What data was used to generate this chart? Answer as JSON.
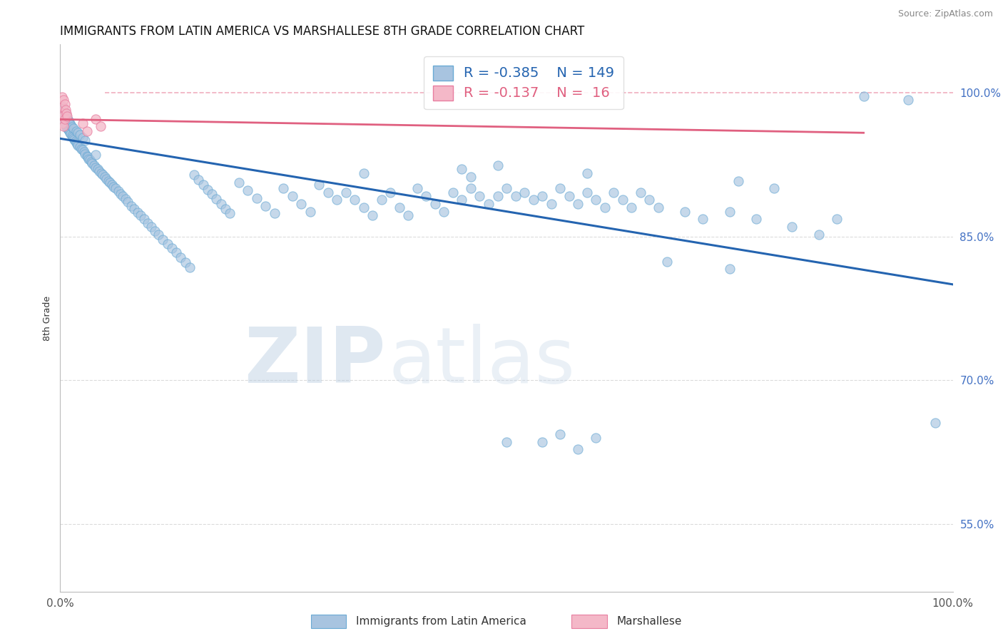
{
  "title": "IMMIGRANTS FROM LATIN AMERICA VS MARSHALLESE 8TH GRADE CORRELATION CHART",
  "source": "Source: ZipAtlas.com",
  "ylabel": "8th Grade",
  "xlim": [
    0.0,
    1.0
  ],
  "ylim": [
    0.48,
    1.05
  ],
  "yticks": [
    0.55,
    0.7,
    0.85,
    1.0
  ],
  "ytick_labels": [
    "55.0%",
    "70.0%",
    "85.0%",
    "100.0%"
  ],
  "blue_R": -0.385,
  "blue_N": 149,
  "pink_R": -0.137,
  "pink_N": 16,
  "blue_color": "#a8c4e0",
  "blue_edge": "#6aaad4",
  "pink_color": "#f4b8c8",
  "pink_edge": "#e87ea0",
  "blue_line_color": "#2464b0",
  "pink_line_color": "#e06080",
  "legend_blue_label": "Immigrants from Latin America",
  "legend_pink_label": "Marshallese",
  "watermark_zip": "ZIP",
  "watermark_atlas": "atlas",
  "background_color": "#ffffff",
  "grid_color": "#cccccc",
  "blue_points": [
    [
      0.001,
      0.978
    ],
    [
      0.002,
      0.975
    ],
    [
      0.003,
      0.972
    ],
    [
      0.003,
      0.985
    ],
    [
      0.004,
      0.97
    ],
    [
      0.004,
      0.982
    ],
    [
      0.005,
      0.968
    ],
    [
      0.005,
      0.979
    ],
    [
      0.006,
      0.966
    ],
    [
      0.006,
      0.977
    ],
    [
      0.007,
      0.964
    ],
    [
      0.007,
      0.975
    ],
    [
      0.008,
      0.963
    ],
    [
      0.008,
      0.973
    ],
    [
      0.009,
      0.961
    ],
    [
      0.009,
      0.971
    ],
    [
      0.01,
      0.96
    ],
    [
      0.01,
      0.969
    ],
    [
      0.011,
      0.958
    ],
    [
      0.011,
      0.967
    ],
    [
      0.012,
      0.957
    ],
    [
      0.012,
      0.966
    ],
    [
      0.013,
      0.955
    ],
    [
      0.013,
      0.964
    ],
    [
      0.014,
      0.954
    ],
    [
      0.015,
      0.952
    ],
    [
      0.015,
      0.963
    ],
    [
      0.016,
      0.951
    ],
    [
      0.017,
      0.949
    ],
    [
      0.018,
      0.948
    ],
    [
      0.018,
      0.96
    ],
    [
      0.019,
      0.946
    ],
    [
      0.02,
      0.945
    ],
    [
      0.02,
      0.958
    ],
    [
      0.022,
      0.943
    ],
    [
      0.022,
      0.956
    ],
    [
      0.024,
      0.941
    ],
    [
      0.025,
      0.94
    ],
    [
      0.025,
      0.953
    ],
    [
      0.027,
      0.938
    ],
    [
      0.028,
      0.936
    ],
    [
      0.028,
      0.95
    ],
    [
      0.03,
      0.934
    ],
    [
      0.031,
      0.933
    ],
    [
      0.032,
      0.931
    ],
    [
      0.033,
      0.93
    ],
    [
      0.035,
      0.928
    ],
    [
      0.036,
      0.926
    ],
    [
      0.038,
      0.924
    ],
    [
      0.04,
      0.922
    ],
    [
      0.04,
      0.935
    ],
    [
      0.042,
      0.92
    ],
    [
      0.044,
      0.918
    ],
    [
      0.046,
      0.916
    ],
    [
      0.048,
      0.914
    ],
    [
      0.05,
      0.912
    ],
    [
      0.052,
      0.91
    ],
    [
      0.054,
      0.908
    ],
    [
      0.056,
      0.906
    ],
    [
      0.058,
      0.904
    ],
    [
      0.06,
      0.902
    ],
    [
      0.062,
      0.9
    ],
    [
      0.065,
      0.897
    ],
    [
      0.068,
      0.894
    ],
    [
      0.07,
      0.892
    ],
    [
      0.073,
      0.889
    ],
    [
      0.076,
      0.886
    ],
    [
      0.08,
      0.882
    ],
    [
      0.083,
      0.879
    ],
    [
      0.087,
      0.875
    ],
    [
      0.09,
      0.872
    ],
    [
      0.094,
      0.868
    ],
    [
      0.098,
      0.864
    ],
    [
      0.102,
      0.86
    ],
    [
      0.106,
      0.856
    ],
    [
      0.11,
      0.852
    ],
    [
      0.115,
      0.847
    ],
    [
      0.12,
      0.842
    ],
    [
      0.125,
      0.838
    ],
    [
      0.13,
      0.833
    ],
    [
      0.135,
      0.828
    ],
    [
      0.14,
      0.823
    ],
    [
      0.145,
      0.818
    ],
    [
      0.15,
      0.914
    ],
    [
      0.155,
      0.909
    ],
    [
      0.16,
      0.904
    ],
    [
      0.165,
      0.899
    ],
    [
      0.17,
      0.894
    ],
    [
      0.175,
      0.889
    ],
    [
      0.18,
      0.884
    ],
    [
      0.185,
      0.879
    ],
    [
      0.19,
      0.874
    ],
    [
      0.2,
      0.906
    ],
    [
      0.21,
      0.898
    ],
    [
      0.22,
      0.89
    ],
    [
      0.23,
      0.882
    ],
    [
      0.24,
      0.874
    ],
    [
      0.25,
      0.9
    ],
    [
      0.26,
      0.892
    ],
    [
      0.27,
      0.884
    ],
    [
      0.28,
      0.876
    ],
    [
      0.29,
      0.904
    ],
    [
      0.3,
      0.896
    ],
    [
      0.31,
      0.888
    ],
    [
      0.32,
      0.896
    ],
    [
      0.33,
      0.888
    ],
    [
      0.34,
      0.88
    ],
    [
      0.35,
      0.872
    ],
    [
      0.36,
      0.888
    ],
    [
      0.37,
      0.896
    ],
    [
      0.38,
      0.88
    ],
    [
      0.39,
      0.872
    ],
    [
      0.4,
      0.9
    ],
    [
      0.41,
      0.892
    ],
    [
      0.42,
      0.884
    ],
    [
      0.43,
      0.876
    ],
    [
      0.44,
      0.896
    ],
    [
      0.45,
      0.888
    ],
    [
      0.46,
      0.9
    ],
    [
      0.47,
      0.892
    ],
    [
      0.48,
      0.884
    ],
    [
      0.49,
      0.892
    ],
    [
      0.5,
      0.9
    ],
    [
      0.51,
      0.892
    ],
    [
      0.52,
      0.896
    ],
    [
      0.53,
      0.888
    ],
    [
      0.54,
      0.892
    ],
    [
      0.55,
      0.884
    ],
    [
      0.56,
      0.9
    ],
    [
      0.57,
      0.892
    ],
    [
      0.58,
      0.884
    ],
    [
      0.59,
      0.896
    ],
    [
      0.6,
      0.888
    ],
    [
      0.61,
      0.88
    ],
    [
      0.62,
      0.896
    ],
    [
      0.63,
      0.888
    ],
    [
      0.64,
      0.88
    ],
    [
      0.65,
      0.896
    ],
    [
      0.66,
      0.888
    ],
    [
      0.67,
      0.88
    ],
    [
      0.7,
      0.876
    ],
    [
      0.72,
      0.868
    ],
    [
      0.75,
      0.876
    ],
    [
      0.78,
      0.868
    ],
    [
      0.82,
      0.86
    ],
    [
      0.85,
      0.852
    ],
    [
      0.87,
      0.868
    ],
    [
      0.9,
      0.996
    ],
    [
      0.95,
      0.992
    ],
    [
      0.98,
      0.656
    ],
    [
      0.45,
      0.92
    ],
    [
      0.46,
      0.912
    ],
    [
      0.34,
      0.916
    ],
    [
      0.59,
      0.916
    ],
    [
      0.49,
      0.924
    ],
    [
      0.54,
      0.636
    ],
    [
      0.58,
      0.628
    ],
    [
      0.6,
      0.64
    ],
    [
      0.76,
      0.908
    ],
    [
      0.8,
      0.9
    ],
    [
      0.68,
      0.824
    ],
    [
      0.75,
      0.816
    ],
    [
      0.5,
      0.636
    ],
    [
      0.56,
      0.644
    ]
  ],
  "pink_points": [
    [
      0.001,
      0.978
    ],
    [
      0.002,
      0.995
    ],
    [
      0.002,
      0.968
    ],
    [
      0.003,
      0.985
    ],
    [
      0.003,
      0.975
    ],
    [
      0.004,
      0.992
    ],
    [
      0.004,
      0.965
    ],
    [
      0.005,
      0.988
    ],
    [
      0.005,
      0.972
    ],
    [
      0.006,
      0.982
    ],
    [
      0.007,
      0.978
    ],
    [
      0.008,
      0.975
    ],
    [
      0.025,
      0.968
    ],
    [
      0.03,
      0.96
    ],
    [
      0.04,
      0.972
    ],
    [
      0.045,
      0.965
    ]
  ],
  "blue_line": [
    [
      0.0,
      0.952
    ],
    [
      1.0,
      0.8
    ]
  ],
  "pink_line": [
    [
      0.0,
      0.972
    ],
    [
      0.9,
      0.958
    ]
  ],
  "hline_y": 1.0,
  "hline_color": "#e06080"
}
